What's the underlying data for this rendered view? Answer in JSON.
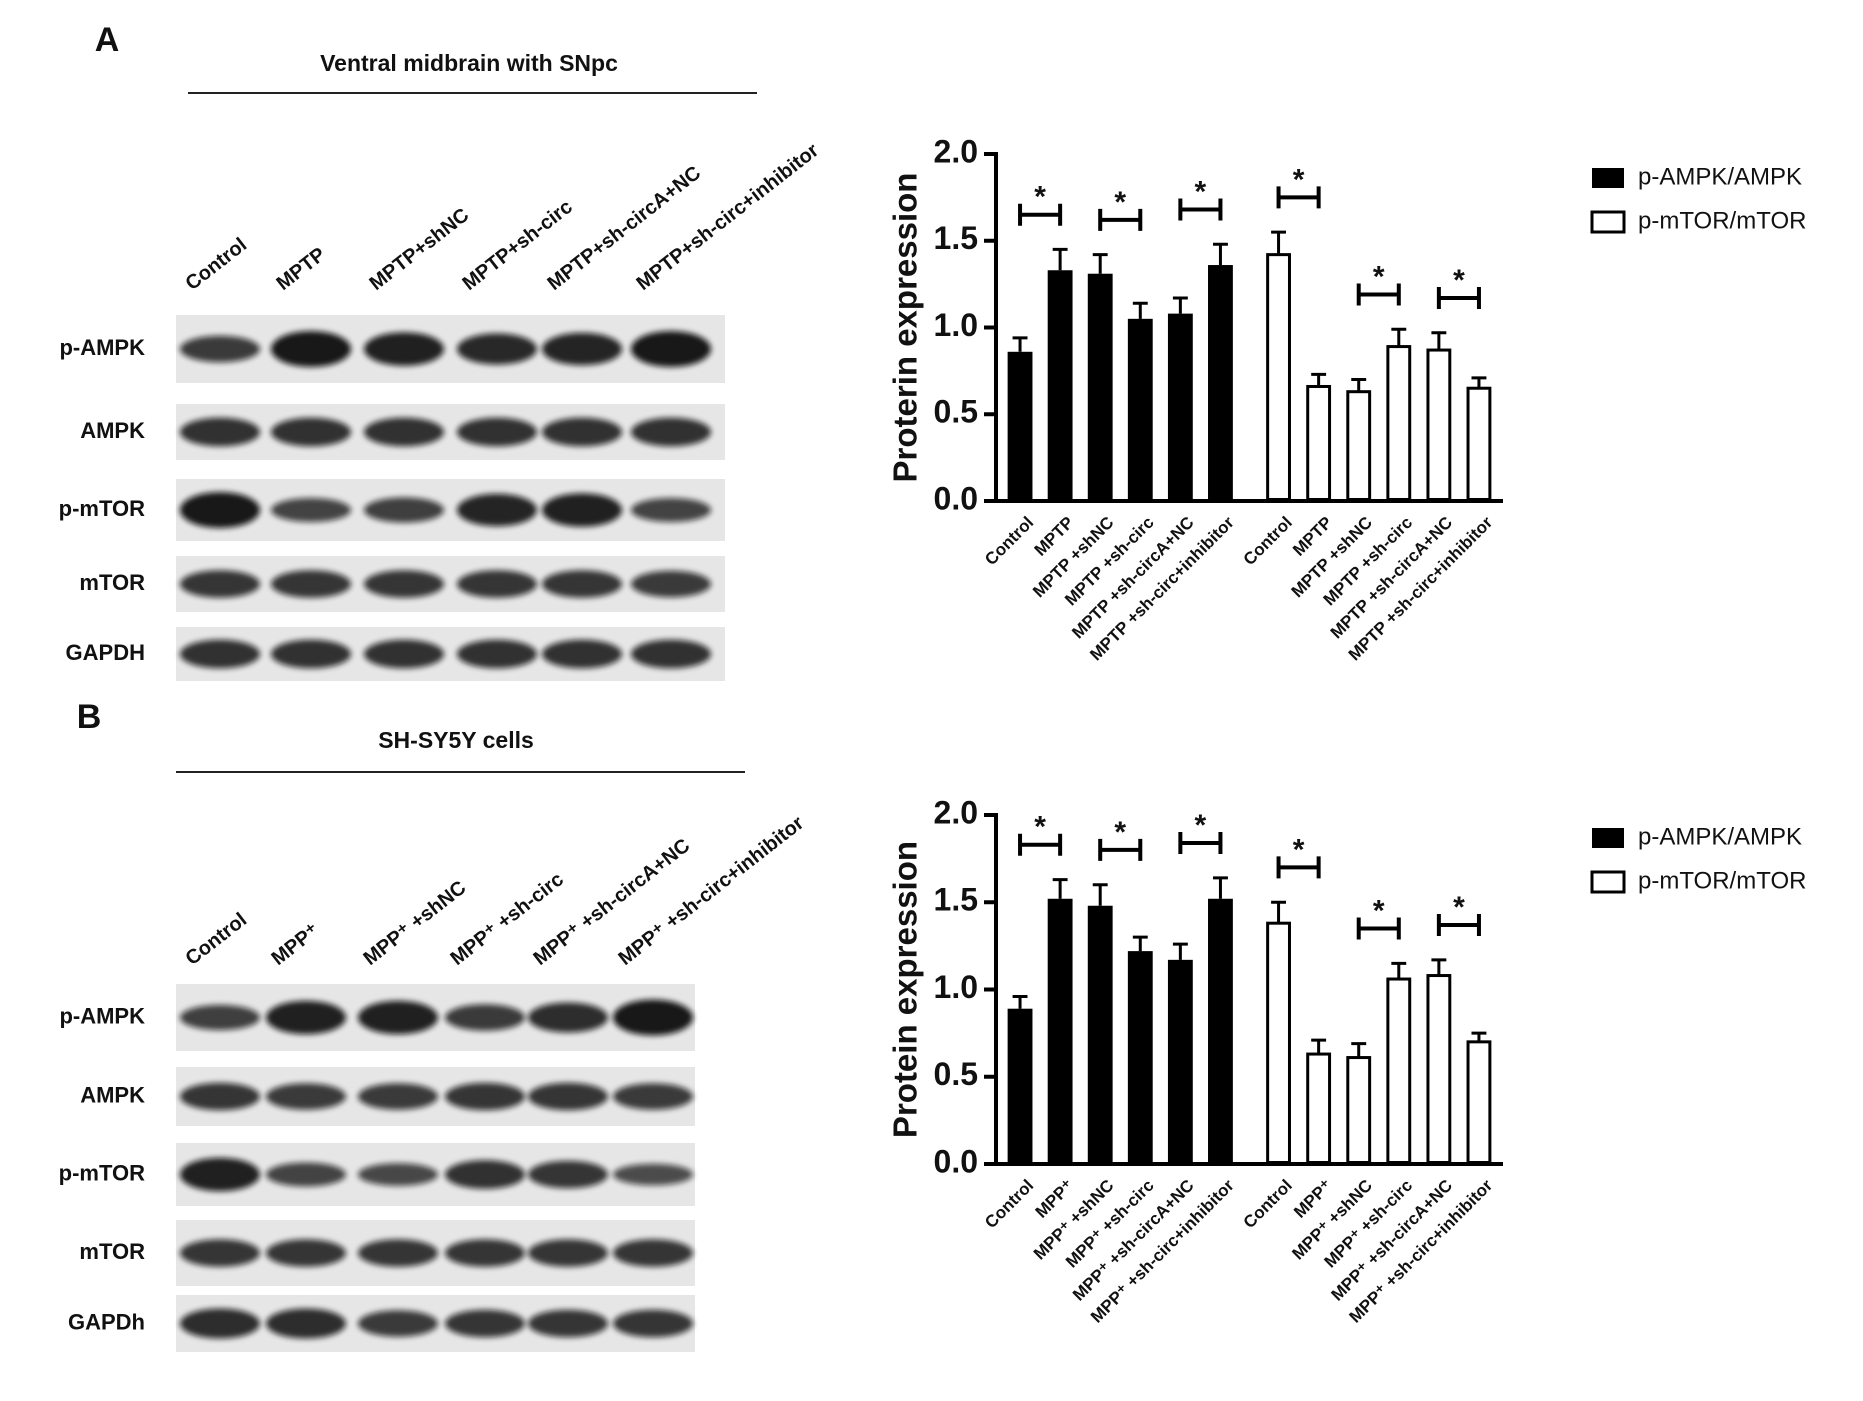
{
  "blots": [
    {
      "label": "A",
      "title": "Ventral midbrain with SNpc",
      "lanes": [
        "Control",
        "MPTP",
        "MPTP+shNC",
        "MPTP+sh-circ",
        "MPTP+sh-circA+NC",
        "MPTP+sh-circ+inhibitor"
      ],
      "rows": [
        "p-AMPK",
        "AMPK",
        "p-mTOR",
        "mTOR",
        "GAPDH"
      ]
    },
    {
      "label": "B",
      "title": "SH-SY5Y cells",
      "lanes": [
        "Control",
        "MPP⁺",
        "MPP⁺ +shNC",
        "MPP⁺ +sh-circ",
        "MPP⁺ +sh-circA+NC",
        "MPP⁺ +sh-circ+inhibitor"
      ],
      "rows": [
        "p-AMPK",
        "AMPK",
        "p-mTOR",
        "mTOR",
        "GAPDh"
      ]
    }
  ],
  "chart_data": [
    {
      "type": "bar",
      "ylabel": "Proterin expression",
      "categories": [
        "Control",
        "MPTP",
        "MPTP +shNC",
        "MPTP +sh-circ",
        "MPTP +sh-circA+NC",
        "MPTP +sh-circ+inhibitor",
        "Control",
        "MPTP",
        "MPTP +shNC",
        "MPTP +sh-circ",
        "MPTP +sh-circA+NC",
        "MPTP +sh-circ+inhibitor"
      ],
      "series": [
        {
          "name": "p-AMPK/AMPK",
          "color": "#000000",
          "values": [
            0.86,
            1.33,
            1.31,
            1.05,
            1.08,
            1.36,
            null,
            null,
            null,
            null,
            null,
            null
          ],
          "errors": [
            0.08,
            0.12,
            0.11,
            0.09,
            0.09,
            0.12,
            null,
            null,
            null,
            null,
            null,
            null
          ]
        },
        {
          "name": "p-mTOR/mTOR",
          "color": "#ffffff",
          "values": [
            null,
            null,
            null,
            null,
            null,
            null,
            1.42,
            0.66,
            0.63,
            0.89,
            0.87,
            0.65
          ],
          "errors": [
            null,
            null,
            null,
            null,
            null,
            null,
            0.13,
            0.07,
            0.07,
            0.1,
            0.1,
            0.06
          ]
        }
      ],
      "annotations": [
        {
          "text": "*",
          "categories": [
            0,
            1
          ]
        },
        {
          "text": "*",
          "categories": [
            2,
            3
          ]
        },
        {
          "text": "*",
          "categories": [
            4,
            5
          ]
        },
        {
          "text": "*",
          "categories": [
            6,
            7
          ]
        },
        {
          "text": "*",
          "categories": [
            8,
            9
          ]
        },
        {
          "text": "*",
          "categories": [
            10,
            11
          ]
        }
      ],
      "ylim": [
        0,
        2
      ],
      "yticks": [
        {
          "value": 0,
          "label": "0.0"
        },
        {
          "value": 0.5,
          "label": "0.5"
        },
        {
          "value": 1,
          "label": "1.0"
        },
        {
          "value": 1.5,
          "label": "1.5"
        },
        {
          "value": 2,
          "label": "2.0"
        }
      ],
      "legend": "right"
    },
    {
      "type": "bar",
      "ylabel": "Protein expression",
      "categories": [
        "Control",
        "MPP⁺",
        "MPP⁺ +shNC",
        "MPP⁺ +sh-circ",
        "MPP⁺ +sh-circA+NC",
        "MPP⁺ +sh-circ+inhibitor",
        "Control",
        "MPP⁺",
        "MPP⁺ +shNC",
        "MPP⁺ +sh-circ",
        "MPP⁺ +sh-circA+NC",
        "MPP⁺ +sh-circ+inhibitor"
      ],
      "series": [
        {
          "name": "p-AMPK/AMPK",
          "color": "#000000",
          "values": [
            0.89,
            1.52,
            1.48,
            1.22,
            1.17,
            1.52,
            null,
            null,
            null,
            null,
            null,
            null
          ],
          "errors": [
            0.07,
            0.11,
            0.12,
            0.08,
            0.09,
            0.12,
            null,
            null,
            null,
            null,
            null,
            null
          ]
        },
        {
          "name": "p-mTOR/mTOR",
          "color": "#ffffff",
          "values": [
            null,
            null,
            null,
            null,
            null,
            null,
            1.38,
            0.63,
            0.61,
            1.06,
            1.08,
            0.7
          ],
          "errors": [
            null,
            null,
            null,
            null,
            null,
            null,
            0.12,
            0.08,
            0.08,
            0.09,
            0.09,
            0.05
          ]
        }
      ],
      "annotations": [
        {
          "text": "*",
          "categories": [
            0,
            1
          ]
        },
        {
          "text": "*",
          "categories": [
            2,
            3
          ]
        },
        {
          "text": "*",
          "categories": [
            4,
            5
          ]
        },
        {
          "text": "*",
          "categories": [
            6,
            7
          ]
        },
        {
          "text": "*",
          "categories": [
            8,
            9
          ]
        },
        {
          "text": "*",
          "categories": [
            10,
            11
          ]
        }
      ],
      "ylim": [
        0,
        2
      ],
      "yticks": [
        {
          "value": 0,
          "label": "0.0"
        },
        {
          "value": 0.5,
          "label": "0.5"
        },
        {
          "value": 1,
          "label": "1.0"
        },
        {
          "value": 1.5,
          "label": "1.5"
        },
        {
          "value": 2,
          "label": "2.0"
        }
      ],
      "legend": "right"
    }
  ]
}
